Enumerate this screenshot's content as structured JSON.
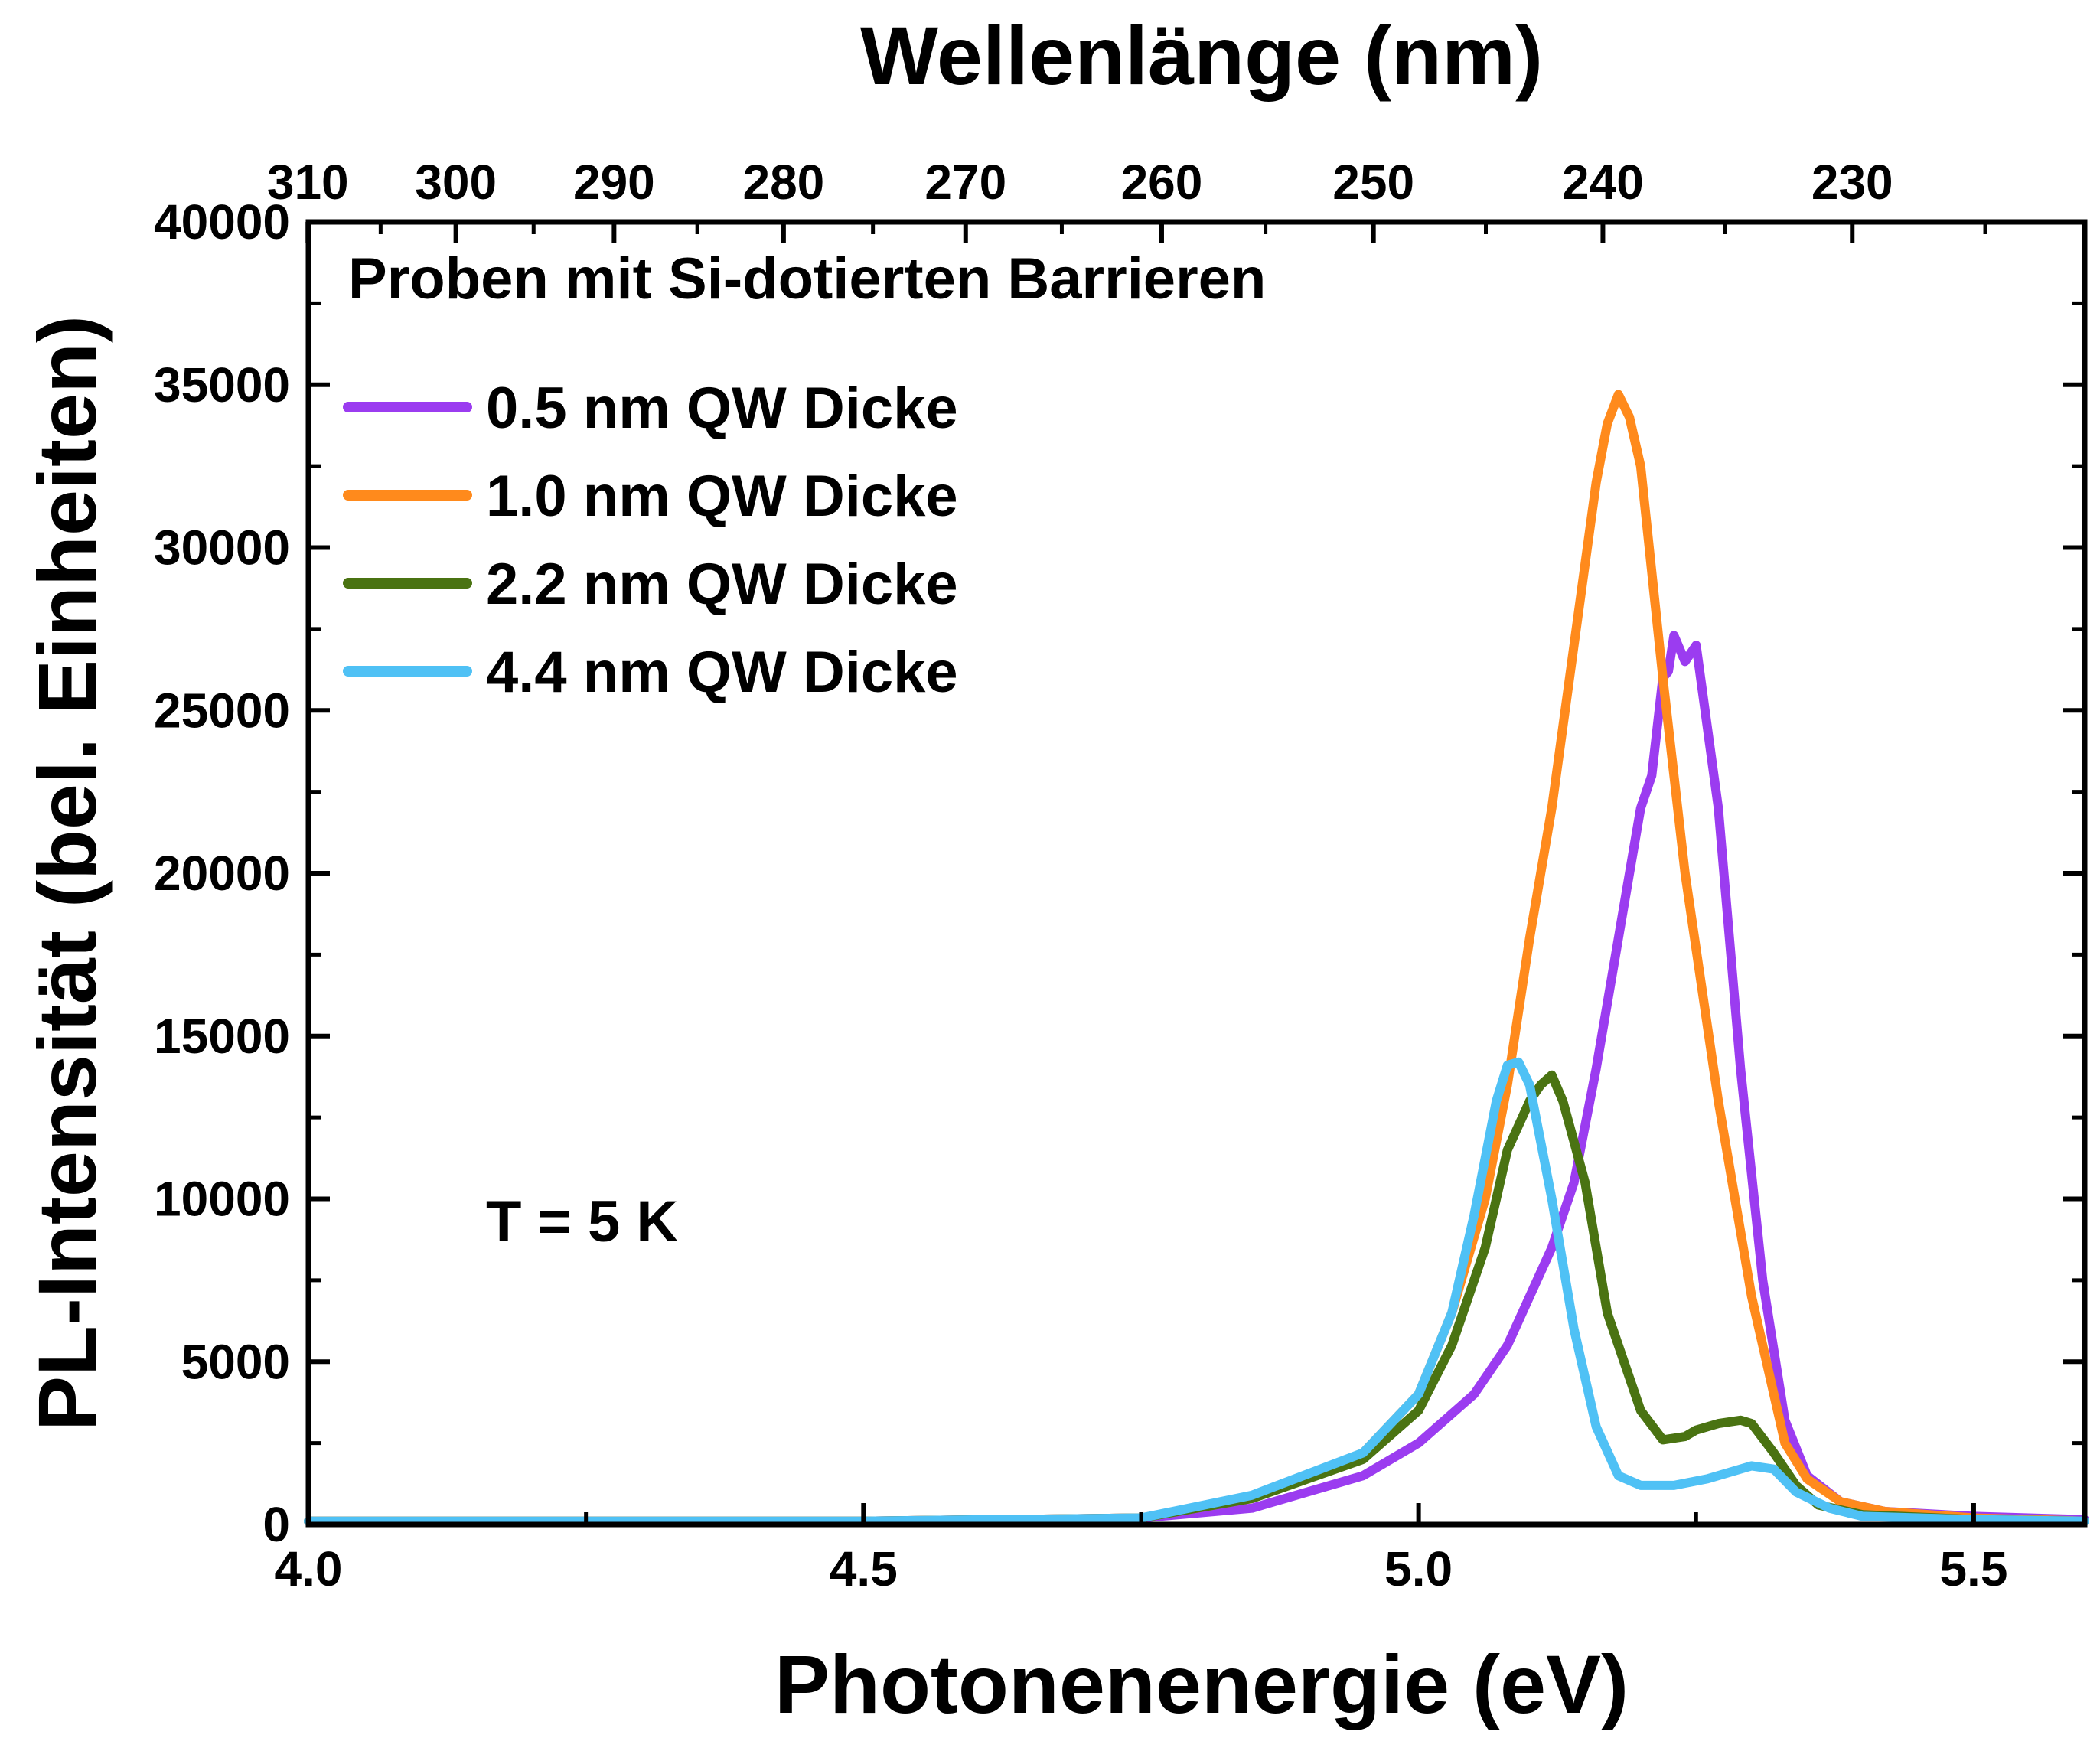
{
  "chart_data": {
    "type": "line",
    "xlabel": "Photonenenergie (eV)",
    "ylabel": "PL-Intensität (bel. Einheiten)",
    "x2label": "Wellenlänge (nm)",
    "xlim": [
      4.0,
      5.6
    ],
    "ylim": [
      0,
      40000
    ],
    "x_ticks": [
      {
        "value": 4.0,
        "label": "4.0"
      },
      {
        "value": 4.5,
        "label": "4.5"
      },
      {
        "value": 5.0,
        "label": "5.0"
      },
      {
        "value": 5.5,
        "label": "5.5"
      }
    ],
    "y_ticks": [
      {
        "value": 0,
        "label": "0"
      },
      {
        "value": 5000,
        "label": "5000"
      },
      {
        "value": 10000,
        "label": "10000"
      },
      {
        "value": 15000,
        "label": "15000"
      },
      {
        "value": 20000,
        "label": "20000"
      },
      {
        "value": 25000,
        "label": "25000"
      },
      {
        "value": 30000,
        "label": "30000"
      },
      {
        "value": 35000,
        "label": "35000"
      },
      {
        "value": 40000,
        "label": "40000"
      }
    ],
    "top_ticks": [
      {
        "value": 310,
        "label": "310"
      },
      {
        "value": 300,
        "label": "300"
      },
      {
        "value": 290,
        "label": "290"
      },
      {
        "value": 280,
        "label": "280"
      },
      {
        "value": 270,
        "label": "270"
      },
      {
        "value": 260,
        "label": "260"
      },
      {
        "value": 250,
        "label": "250"
      },
      {
        "value": 240,
        "label": "240"
      },
      {
        "value": 230,
        "label": "230"
      }
    ],
    "legend_title": "Proben mit Si-dotierten Barrieren",
    "legend_position": "top-left",
    "annotation": "T = 5 K",
    "grid": false,
    "series": [
      {
        "name": "0.5 nm QW Dicke",
        "color": "#9b3cf0",
        "x": [
          4.0,
          4.5,
          4.75,
          4.85,
          4.95,
          5.0,
          5.05,
          5.08,
          5.1,
          5.12,
          5.14,
          5.16,
          5.18,
          5.19,
          5.2,
          5.21,
          5.22,
          5.225,
          5.23,
          5.24,
          5.25,
          5.27,
          5.29,
          5.31,
          5.33,
          5.35,
          5.38,
          5.42,
          5.5,
          5.6
        ],
        "y": [
          100,
          100,
          200,
          500,
          1500,
          2500,
          4000,
          5500,
          7000,
          8500,
          10500,
          14000,
          18000,
          20000,
          22000,
          23000,
          26000,
          26200,
          27300,
          26500,
          27000,
          22000,
          14000,
          7500,
          3200,
          1500,
          700,
          400,
          250,
          150
        ]
      },
      {
        "name": "1.0 nm QW Dicke",
        "color": "#ff8a1c",
        "x": [
          4.0,
          4.5,
          4.75,
          4.85,
          4.95,
          5.0,
          5.03,
          5.06,
          5.08,
          5.1,
          5.12,
          5.14,
          5.16,
          5.17,
          5.18,
          5.19,
          5.2,
          5.22,
          5.24,
          5.27,
          5.3,
          5.33,
          5.35,
          5.38,
          5.42,
          5.5,
          5.6
        ],
        "y": [
          100,
          100,
          200,
          800,
          2200,
          4000,
          6500,
          10000,
          13500,
          18000,
          22000,
          27000,
          32000,
          33800,
          34700,
          34000,
          32500,
          26000,
          20000,
          13000,
          7000,
          2500,
          1400,
          700,
          400,
          200,
          100
        ]
      },
      {
        "name": "2.2 nm QW Dicke",
        "color": "#4a7312",
        "x": [
          4.0,
          4.5,
          4.75,
          4.85,
          4.95,
          5.0,
          5.03,
          5.06,
          5.08,
          5.1,
          5.11,
          5.12,
          5.13,
          5.15,
          5.17,
          5.2,
          5.22,
          5.24,
          5.25,
          5.27,
          5.29,
          5.3,
          5.32,
          5.34,
          5.36,
          5.4,
          5.5,
          5.6
        ],
        "y": [
          100,
          100,
          200,
          800,
          2000,
          3500,
          5500,
          8500,
          11500,
          13000,
          13500,
          13800,
          13000,
          10500,
          6500,
          3500,
          2600,
          2700,
          2900,
          3100,
          3200,
          3100,
          2200,
          1200,
          600,
          300,
          150,
          100
        ]
      },
      {
        "name": "4.4 nm QW Dicke",
        "color": "#4fc1f5",
        "x": [
          4.0,
          4.5,
          4.75,
          4.85,
          4.95,
          5.0,
          5.03,
          5.05,
          5.07,
          5.08,
          5.09,
          5.1,
          5.12,
          5.14,
          5.16,
          5.18,
          5.2,
          5.23,
          5.26,
          5.28,
          5.3,
          5.32,
          5.34,
          5.37,
          5.4,
          5.5,
          5.6
        ],
        "y": [
          100,
          100,
          200,
          900,
          2200,
          4000,
          6500,
          9500,
          13000,
          14100,
          14200,
          13500,
          10000,
          6000,
          3000,
          1500,
          1200,
          1200,
          1400,
          1600,
          1800,
          1700,
          1000,
          500,
          250,
          150,
          100
        ]
      }
    ]
  }
}
